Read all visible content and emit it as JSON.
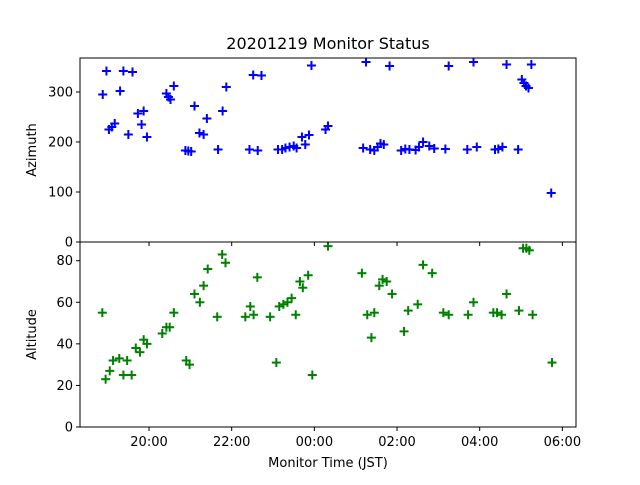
{
  "chart_data": {
    "type": "scatter",
    "title": "20201219 Monitor Status",
    "xlabel": "Monitor Time (JST)",
    "x_axis": {
      "unit": "hours since 18:00 JST",
      "range": [
        0.33,
        12.33
      ],
      "ticks": [
        {
          "value": 2,
          "label": "20:00"
        },
        {
          "value": 4,
          "label": "22:00"
        },
        {
          "value": 6,
          "label": "00:00"
        },
        {
          "value": 8,
          "label": "02:00"
        },
        {
          "value": 10,
          "label": "04:00"
        },
        {
          "value": 12,
          "label": "06:00"
        }
      ]
    },
    "panels": [
      {
        "name": "azimuth-panel",
        "ylabel": "Azimuth",
        "ylim": [
          0,
          368
        ],
        "yticks": [
          0,
          100,
          200,
          300
        ],
        "color": "#0000ff",
        "marker": "plus",
        "points": [
          [
            0.88,
            295
          ],
          [
            0.97,
            342
          ],
          [
            1.03,
            225
          ],
          [
            1.1,
            230
          ],
          [
            1.17,
            237
          ],
          [
            1.3,
            302
          ],
          [
            1.38,
            342
          ],
          [
            1.5,
            215
          ],
          [
            1.6,
            340
          ],
          [
            1.73,
            257
          ],
          [
            1.82,
            235
          ],
          [
            1.87,
            262
          ],
          [
            1.95,
            210
          ],
          [
            2.42,
            297
          ],
          [
            2.47,
            290
          ],
          [
            2.52,
            285
          ],
          [
            2.6,
            312
          ],
          [
            2.88,
            183
          ],
          [
            2.95,
            182
          ],
          [
            3.02,
            181
          ],
          [
            3.1,
            272
          ],
          [
            3.22,
            218
          ],
          [
            3.32,
            215
          ],
          [
            3.4,
            247
          ],
          [
            3.67,
            185
          ],
          [
            3.78,
            262
          ],
          [
            3.87,
            310
          ],
          [
            4.43,
            185
          ],
          [
            4.52,
            334
          ],
          [
            4.63,
            183
          ],
          [
            4.72,
            333
          ],
          [
            5.12,
            185
          ],
          [
            5.22,
            185
          ],
          [
            5.3,
            188
          ],
          [
            5.4,
            190
          ],
          [
            5.5,
            192
          ],
          [
            5.57,
            188
          ],
          [
            5.7,
            210
          ],
          [
            5.78,
            195
          ],
          [
            5.87,
            214
          ],
          [
            5.93,
            353
          ],
          [
            6.27,
            225
          ],
          [
            6.33,
            232
          ],
          [
            7.18,
            188
          ],
          [
            7.25,
            360
          ],
          [
            7.35,
            185
          ],
          [
            7.45,
            183
          ],
          [
            7.53,
            190
          ],
          [
            7.6,
            197
          ],
          [
            7.68,
            195
          ],
          [
            7.82,
            352
          ],
          [
            8.1,
            183
          ],
          [
            8.2,
            186
          ],
          [
            8.3,
            185
          ],
          [
            8.45,
            184
          ],
          [
            8.53,
            190
          ],
          [
            8.63,
            200
          ],
          [
            8.78,
            192
          ],
          [
            8.9,
            187
          ],
          [
            9.17,
            186
          ],
          [
            9.25,
            352
          ],
          [
            9.7,
            185
          ],
          [
            9.85,
            360
          ],
          [
            9.93,
            190
          ],
          [
            10.37,
            185
          ],
          [
            10.45,
            186
          ],
          [
            10.55,
            190
          ],
          [
            10.65,
            355
          ],
          [
            10.93,
            185
          ],
          [
            11.02,
            325
          ],
          [
            11.07,
            318
          ],
          [
            11.12,
            312
          ],
          [
            11.18,
            308
          ],
          [
            11.25,
            355
          ],
          [
            11.73,
            98
          ]
        ]
      },
      {
        "name": "altitude-panel",
        "ylabel": "Altitude",
        "xlabel": "Monitor Time (JST)",
        "ylim": [
          0,
          89
        ],
        "yticks": [
          0,
          20,
          40,
          60,
          80
        ],
        "color": "#008000",
        "marker": "plus",
        "points": [
          [
            0.87,
            55
          ],
          [
            0.95,
            23
          ],
          [
            1.05,
            27
          ],
          [
            1.13,
            32
          ],
          [
            1.28,
            33
          ],
          [
            1.38,
            25
          ],
          [
            1.47,
            32
          ],
          [
            1.58,
            25
          ],
          [
            1.68,
            38
          ],
          [
            1.78,
            36
          ],
          [
            1.87,
            42
          ],
          [
            1.95,
            40
          ],
          [
            2.32,
            45
          ],
          [
            2.42,
            48
          ],
          [
            2.5,
            48
          ],
          [
            2.6,
            55
          ],
          [
            2.9,
            32
          ],
          [
            2.98,
            30
          ],
          [
            3.1,
            64
          ],
          [
            3.23,
            60
          ],
          [
            3.32,
            68
          ],
          [
            3.42,
            76
          ],
          [
            3.65,
            53
          ],
          [
            3.77,
            83
          ],
          [
            3.85,
            79
          ],
          [
            4.33,
            53
          ],
          [
            4.45,
            58
          ],
          [
            4.53,
            54
          ],
          [
            4.62,
            72
          ],
          [
            4.93,
            53
          ],
          [
            5.08,
            31
          ],
          [
            5.15,
            58
          ],
          [
            5.25,
            59
          ],
          [
            5.35,
            60
          ],
          [
            5.45,
            62
          ],
          [
            5.55,
            54
          ],
          [
            5.65,
            70
          ],
          [
            5.72,
            67
          ],
          [
            5.85,
            73
          ],
          [
            5.95,
            25
          ],
          [
            6.33,
            87
          ],
          [
            7.15,
            74
          ],
          [
            7.28,
            54
          ],
          [
            7.38,
            43
          ],
          [
            7.45,
            55
          ],
          [
            7.57,
            68
          ],
          [
            7.65,
            71
          ],
          [
            7.75,
            70
          ],
          [
            7.88,
            64
          ],
          [
            8.17,
            46
          ],
          [
            8.27,
            56
          ],
          [
            8.5,
            59
          ],
          [
            8.63,
            78
          ],
          [
            8.85,
            74
          ],
          [
            9.12,
            55
          ],
          [
            9.25,
            54
          ],
          [
            9.72,
            54
          ],
          [
            9.85,
            60
          ],
          [
            10.33,
            55
          ],
          [
            10.42,
            55
          ],
          [
            10.53,
            54
          ],
          [
            10.65,
            64
          ],
          [
            10.95,
            56
          ],
          [
            11.05,
            86
          ],
          [
            11.13,
            86
          ],
          [
            11.2,
            85
          ],
          [
            11.28,
            54
          ],
          [
            11.75,
            31
          ]
        ]
      }
    ]
  }
}
